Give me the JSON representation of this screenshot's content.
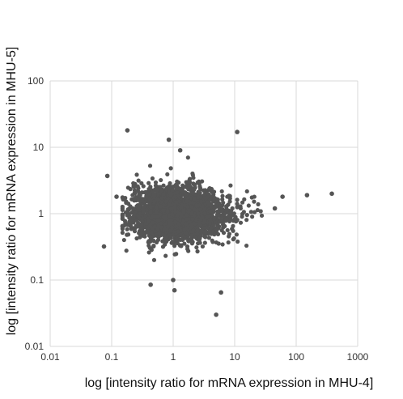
{
  "chart_data": {
    "type": "scatter",
    "xscale": "log",
    "yscale": "log",
    "xlim": [
      0.01,
      1000
    ],
    "ylim": [
      0.01,
      100
    ],
    "xticks": [
      "0.01",
      "0.1",
      "1",
      "10",
      "100",
      "1000"
    ],
    "yticks": [
      "0.01",
      "0.1",
      "1",
      "10",
      "100"
    ],
    "xlabel": "log [intensity ratio for mRNA expression in MHU-4]",
    "ylabel": "log [intensity ratio for mRNA expression in MHU-5]",
    "grid": true,
    "point_color": "#555555",
    "cluster": {
      "center": [
        1.0,
        1.0
      ],
      "x_range": [
        0.15,
        40
      ],
      "y_range": [
        0.2,
        7
      ]
    },
    "points": [
      {
        "x": 0.18,
        "y": 18
      },
      {
        "x": 11,
        "y": 17
      },
      {
        "x": 0.85,
        "y": 13
      },
      {
        "x": 1.3,
        "y": 9
      },
      {
        "x": 0.085,
        "y": 3.7
      },
      {
        "x": 380,
        "y": 2.0
      },
      {
        "x": 150,
        "y": 1.9
      },
      {
        "x": 0.075,
        "y": 0.32
      },
      {
        "x": 1.0,
        "y": 0.1
      },
      {
        "x": 0.43,
        "y": 0.085
      },
      {
        "x": 1.05,
        "y": 0.07
      },
      {
        "x": 6,
        "y": 0.065
      },
      {
        "x": 5,
        "y": 0.03
      },
      {
        "x": 0.12,
        "y": 1.8
      },
      {
        "x": 0.15,
        "y": 0.65
      },
      {
        "x": 60,
        "y": 1.8
      },
      {
        "x": 45,
        "y": 1.2
      }
    ]
  }
}
